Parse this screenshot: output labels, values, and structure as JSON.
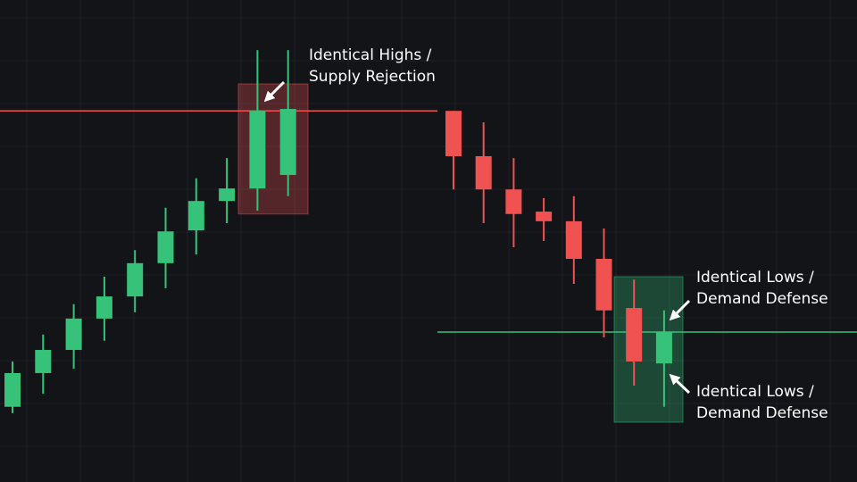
{
  "chart_data": {
    "type": "candlestick",
    "ylim": [
      0,
      100
    ],
    "up_color": "#36c279",
    "down_color": "#f05252",
    "candles": [
      {
        "open": 15.6,
        "high": 25,
        "low": 14.3,
        "close": 22.6
      },
      {
        "open": 22.6,
        "high": 30.6,
        "low": 18.3,
        "close": 27.4
      },
      {
        "open": 27.4,
        "high": 36.9,
        "low": 23.5,
        "close": 33.9
      },
      {
        "open": 33.9,
        "high": 42.6,
        "low": 29.3,
        "close": 38.5
      },
      {
        "open": 38.5,
        "high": 48.1,
        "low": 35.2,
        "close": 45.4
      },
      {
        "open": 45.4,
        "high": 56.9,
        "low": 40.2,
        "close": 52
      },
      {
        "open": 52.2,
        "high": 63,
        "low": 47.2,
        "close": 58.3
      },
      {
        "open": 58.3,
        "high": 67.2,
        "low": 53.7,
        "close": 60.9
      },
      {
        "open": 60.9,
        "high": 89.6,
        "low": 56.3,
        "close": 77
      },
      {
        "open": 63.7,
        "high": 89.6,
        "low": 59.3,
        "close": 77.4
      },
      {
        "open": 77,
        "high": 77,
        "low": 60.7,
        "close": 67.6
      },
      {
        "open": 67.6,
        "high": 74.6,
        "low": 53.7,
        "close": 60.7
      },
      {
        "open": 60.7,
        "high": 67.2,
        "low": 48.7,
        "close": 55.6
      },
      {
        "open": 56.1,
        "high": 58.9,
        "low": 50,
        "close": 54.1
      },
      {
        "open": 54.1,
        "high": 59.3,
        "low": 41.1,
        "close": 46.3
      },
      {
        "open": 46.3,
        "high": 52.6,
        "low": 30,
        "close": 35.6
      },
      {
        "open": 36.1,
        "high": 42,
        "low": 20,
        "close": 25
      },
      {
        "open": 24.6,
        "high": 35.6,
        "low": 15.6,
        "close": 31.1
      }
    ],
    "levels": [
      {
        "value": 77,
        "color": "#f05252"
      },
      {
        "value": 31.1,
        "color": "#36c279"
      }
    ],
    "zones": [
      {
        "top": 82.6,
        "bottom": 55.6,
        "color": "#f05252"
      },
      {
        "top": 42.6,
        "bottom": 12.4,
        "color": "#36c279"
      }
    ],
    "annotations": [
      {
        "lines": [
          "Identical Highs /",
          "Supply Rejection"
        ]
      },
      {
        "lines": [
          "Identical Lows /",
          "Demand Defense"
        ]
      },
      {
        "lines": [
          "Identical Lows /",
          "Demand Defense"
        ]
      }
    ]
  }
}
